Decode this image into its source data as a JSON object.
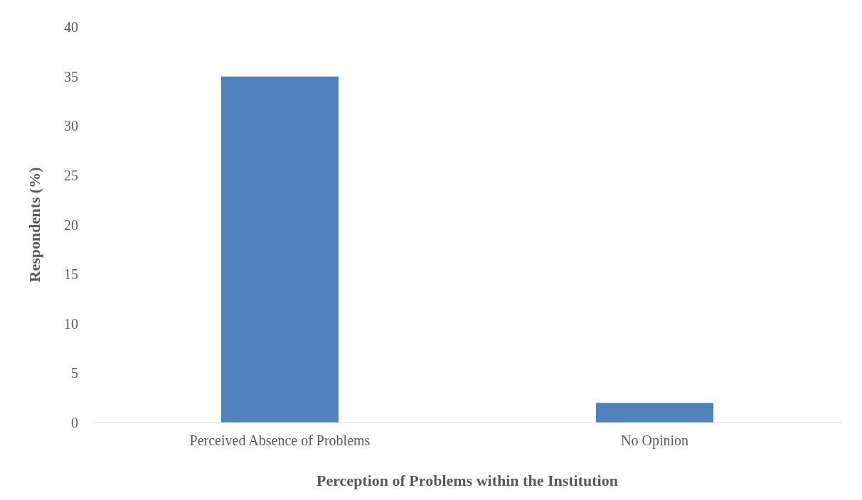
{
  "chart_data": {
    "type": "bar",
    "xlabel": "Perception of Problems within the Institution",
    "ylabel": "Respondents (%)",
    "categories": [
      "Perceived Absence of Problems",
      "No Opinion"
    ],
    "values": [
      35,
      2
    ],
    "color": "#4f81bd",
    "ylim": [
      0,
      40
    ],
    "yticks": [
      0,
      5,
      10,
      15,
      20,
      25,
      30,
      35,
      40
    ],
    "grid": false,
    "legend": false
  }
}
